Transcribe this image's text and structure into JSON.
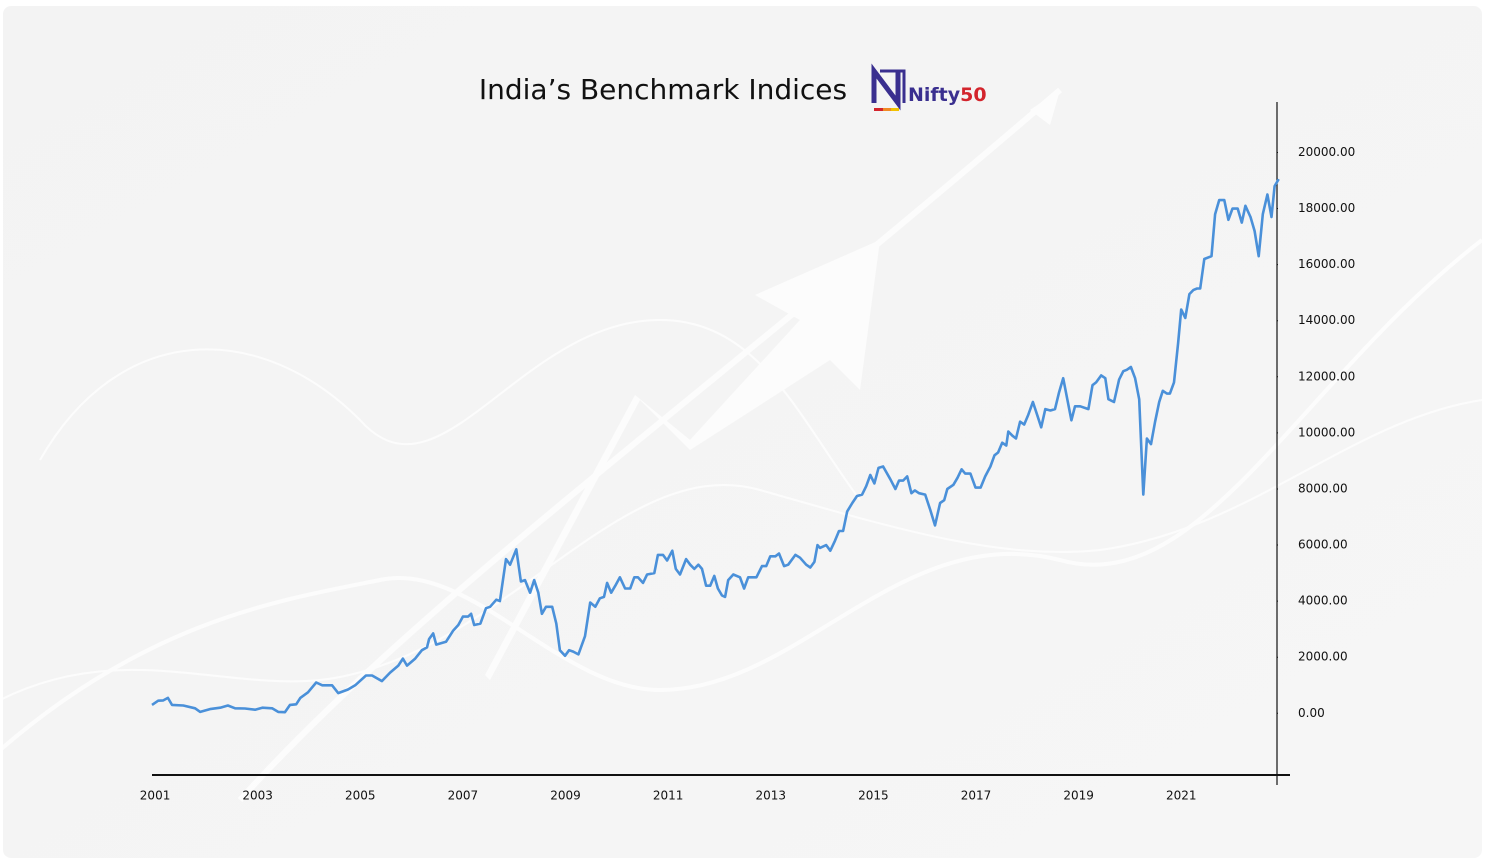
{
  "chart_data": {
    "type": "line",
    "title": "India’s Benchmark Indices",
    "logo": {
      "name": "Nifty",
      "number": "50"
    },
    "color": "#4a90d9",
    "x": [
      2000.94,
      2001.06,
      2001.16,
      2001.25,
      2001.33,
      2001.55,
      2001.78,
      2001.88,
      2002.07,
      2002.27,
      2002.42,
      2002.56,
      2002.75,
      2002.95,
      2003.09,
      2003.28,
      2003.4,
      2003.53,
      2003.63,
      2003.75,
      2003.83,
      2003.98,
      2004.14,
      2004.26,
      2004.45,
      2004.57,
      2004.76,
      2004.9,
      2005.11,
      2005.23,
      2005.42,
      2005.58,
      2005.74,
      2005.83,
      2005.91,
      2006.07,
      2006.2,
      2006.3,
      2006.34,
      2006.42,
      2006.48,
      2006.67,
      2006.81,
      2006.91,
      2007.0,
      2007.1,
      2007.16,
      2007.22,
      2007.34,
      2007.45,
      2007.53,
      2007.65,
      2007.72,
      2007.84,
      2007.92,
      2008.04,
      2008.13,
      2008.21,
      2008.31,
      2008.39,
      2008.47,
      2008.54,
      2008.62,
      2008.74,
      2008.82,
      2008.89,
      2008.99,
      2009.07,
      2009.15,
      2009.25,
      2009.38,
      2009.48,
      2009.58,
      2009.67,
      2009.75,
      2009.81,
      2009.89,
      2009.97,
      2010.06,
      2010.16,
      2010.26,
      2010.34,
      2010.41,
      2010.51,
      2010.59,
      2010.73,
      2010.8,
      2010.9,
      2010.98,
      2011.08,
      2011.15,
      2011.23,
      2011.35,
      2011.43,
      2011.51,
      2011.59,
      2011.66,
      2011.74,
      2011.82,
      2011.9,
      2011.97,
      2012.05,
      2012.11,
      2012.17,
      2012.27,
      2012.4,
      2012.48,
      2012.56,
      2012.72,
      2012.83,
      2012.91,
      2012.99,
      2013.09,
      2013.16,
      2013.26,
      2013.34,
      2013.48,
      2013.57,
      2013.69,
      2013.77,
      2013.85,
      2013.91,
      2013.96,
      2014.08,
      2014.16,
      2014.25,
      2014.33,
      2014.41,
      2014.49,
      2014.59,
      2014.68,
      2014.78,
      2014.86,
      2014.94,
      2015.02,
      2015.1,
      2015.19,
      2015.33,
      2015.43,
      2015.5,
      2015.58,
      2015.66,
      2015.74,
      2015.81,
      2015.89,
      2016.01,
      2016.11,
      2016.2,
      2016.3,
      2016.38,
      2016.44,
      2016.56,
      2016.64,
      2016.72,
      2016.79,
      2016.89,
      2016.99,
      2017.09,
      2017.18,
      2017.28,
      2017.36,
      2017.43,
      2017.51,
      2017.59,
      2017.63,
      2017.71,
      2017.78,
      2017.86,
      2017.94,
      2018.02,
      2018.11,
      2018.19,
      2018.27,
      2018.35,
      2018.45,
      2018.54,
      2018.62,
      2018.7,
      2018.78,
      2018.86,
      2018.93,
      2019.03,
      2019.19,
      2019.27,
      2019.34,
      2019.44,
      2019.52,
      2019.58,
      2019.69,
      2019.79,
      2019.87,
      2019.94,
      2020.02,
      2020.1,
      2020.18,
      2020.26,
      2020.33,
      2020.41,
      2020.49,
      2020.57,
      2020.64,
      2020.72,
      2020.78,
      2020.86,
      2020.94,
      2021.0,
      2021.08,
      2021.16,
      2021.24,
      2021.31,
      2021.37,
      2021.45,
      2021.59,
      2021.66,
      2021.74,
      2021.84,
      2021.92,
      2022.0,
      2022.1,
      2022.18,
      2022.25,
      2022.35,
      2022.43,
      2022.51,
      2022.59,
      2022.68,
      2022.76,
      2022.82,
      2022.9
    ],
    "values": [
      300,
      450,
      460,
      550,
      300,
      280,
      180,
      50,
      150,
      200,
      280,
      180,
      170,
      130,
      200,
      180,
      50,
      40,
      300,
      320,
      550,
      750,
      1100,
      1000,
      1000,
      720,
      850,
      1000,
      1350,
      1350,
      1150,
      1450,
      1700,
      1950,
      1700,
      1950,
      2250,
      2350,
      2650,
      2850,
      2450,
      2550,
      2950,
      3150,
      3450,
      3450,
      3550,
      3150,
      3200,
      3750,
      3800,
      4050,
      4000,
      5500,
      5300,
      5850,
      4700,
      4750,
      4300,
      4750,
      4300,
      3550,
      3800,
      3800,
      3200,
      2250,
      2050,
      2250,
      2200,
      2100,
      2750,
      3950,
      3800,
      4100,
      4150,
      4650,
      4300,
      4550,
      4850,
      4450,
      4450,
      4850,
      4850,
      4650,
      4950,
      5000,
      5650,
      5650,
      5450,
      5800,
      5150,
      4950,
      5500,
      5300,
      5150,
      5300,
      5150,
      4550,
      4550,
      4900,
      4450,
      4200,
      4150,
      4750,
      4950,
      4850,
      4450,
      4850,
      4850,
      5250,
      5250,
      5600,
      5600,
      5700,
      5250,
      5300,
      5650,
      5550,
      5300,
      5200,
      5400,
      6000,
      5900,
      6000,
      5800,
      6150,
      6500,
      6500,
      7200,
      7500,
      7750,
      7800,
      8100,
      8500,
      8200,
      8750,
      8800,
      8350,
      8000,
      8300,
      8300,
      8450,
      7850,
      7950,
      7850,
      7800,
      7250,
      6700,
      7500,
      7600,
      8000,
      8150,
      8400,
      8700,
      8550,
      8550,
      8050,
      8050,
      8450,
      8800,
      9200,
      9300,
      9650,
      9550,
      10050,
      9900,
      9800,
      10400,
      10300,
      10650,
      11100,
      10650,
      10200,
      10850,
      10800,
      10850,
      11450,
      11950,
      11200,
      10450,
      10950,
      10950,
      10850,
      11700,
      11800,
      12050,
      11950,
      11200,
      11100,
      11900,
      12200,
      12250,
      12350,
      11950,
      11200,
      7800,
      9800,
      9600,
      10400,
      11100,
      11500,
      11400,
      11400,
      11800,
      13200,
      14400,
      14100,
      14950,
      15100,
      15150,
      15150,
      16200,
      16300,
      17800,
      18300,
      18300,
      17600,
      18000,
      18000,
      17500,
      18100,
      17700,
      17200,
      16300,
      17800,
      18500,
      17700,
      18800,
      19050
    ],
    "xlim": [
      2000.94,
      2023.12
    ],
    "xticks": [
      2001,
      2003,
      2005,
      2007,
      2009,
      2011,
      2013,
      2015,
      2017,
      2019,
      2021
    ],
    "ylim": [
      -2200,
      21800
    ],
    "yticks": [
      {
        "value": 0,
        "label": "0.00"
      },
      {
        "value": 2000,
        "label": "2000.00"
      },
      {
        "value": 4000,
        "label": "4000.00"
      },
      {
        "value": 6000,
        "label": "6000.00"
      },
      {
        "value": 8000,
        "label": "8000.00"
      },
      {
        "value": 10000,
        "label": "10000.00"
      },
      {
        "value": 12000,
        "label": "12000.00"
      },
      {
        "value": 14000,
        "label": "14000.00"
      },
      {
        "value": 16000,
        "label": "16000.00"
      },
      {
        "value": 18000,
        "label": "18000.00"
      },
      {
        "value": 20000,
        "label": "20000.00"
      }
    ],
    "grid": false
  }
}
